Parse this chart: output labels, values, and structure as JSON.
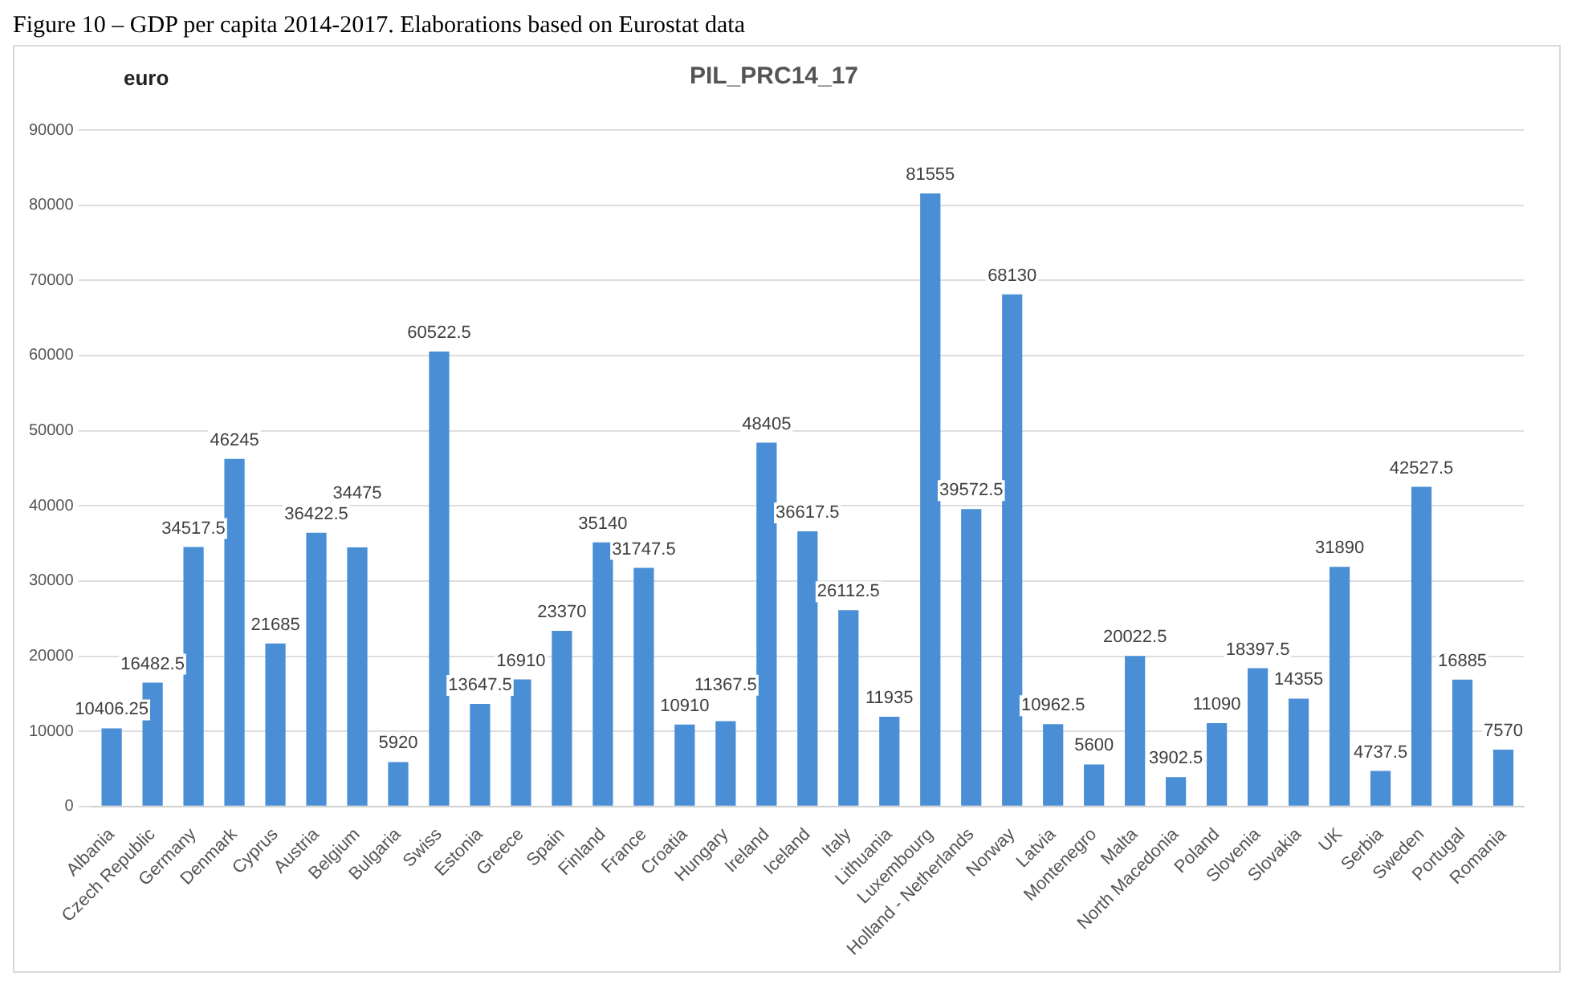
{
  "chart_data": {
    "type": "bar",
    "title": "PIL_PRC14_17",
    "subtitle": "Figure 10 – GDP per capita 2014-2017. Elaborations based on Eurostat data",
    "ylabel": "euro",
    "categories": [
      "Albania",
      "Czech Republic",
      "Germany",
      "Denmark",
      "Cyprus",
      "Austria",
      "Belgium",
      "Bulgaria",
      "Swiss",
      "Estonia",
      "Greece",
      "Spain",
      "Finland",
      "France",
      "Croatia",
      "Hungary",
      "Ireland",
      "Iceland",
      "Italy",
      "Lithuania",
      "Luxembourg",
      "Holland - Netherlands",
      "Norway",
      "Latvia",
      "Montenegro",
      "Malta",
      "North Macedonia",
      "Poland",
      "Slovenia",
      "Slovakia",
      "UK",
      "Serbia",
      "Sweden",
      "Portugal",
      "Romania"
    ],
    "values": [
      10406.25,
      16482.5,
      34517.5,
      46245,
      21685,
      36422.5,
      34475,
      5920,
      60522.5,
      13647.5,
      16910,
      23370,
      35140,
      31747.5,
      10910,
      11367.5,
      48405,
      36617.5,
      26112.5,
      11935,
      81555,
      39572.5,
      68130,
      10962.5,
      5600,
      20022.5,
      3902.5,
      11090,
      18397.5,
      14355,
      31890,
      4737.5,
      42527.5,
      16885,
      7570
    ],
    "color": "#4a8fd6",
    "ylim": [
      0,
      90000
    ],
    "yticks": [
      0,
      10000,
      20000,
      30000,
      40000,
      50000,
      60000,
      70000,
      80000,
      90000
    ],
    "grid": "y",
    "data_labels": true,
    "legend": false
  }
}
